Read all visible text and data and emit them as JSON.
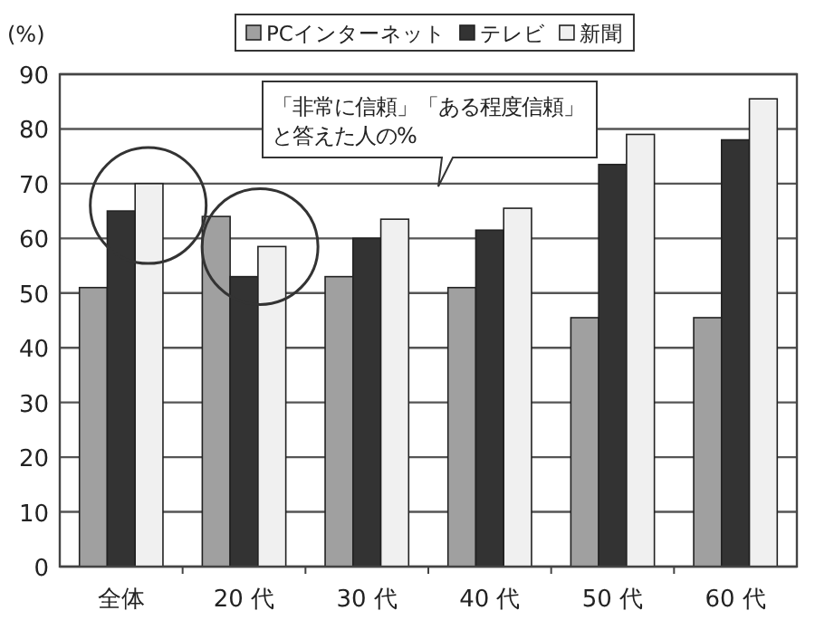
{
  "chart_data": {
    "type": "bar",
    "ylabel": "(%)",
    "categories": [
      "全体",
      "20 代",
      "30 代",
      "40 代",
      "50 代",
      "60 代"
    ],
    "series": [
      {
        "name": "PCインターネット",
        "color": "#a0a0a0",
        "values": [
          51,
          64,
          53,
          51,
          45.5,
          45.5
        ]
      },
      {
        "name": "テレビ",
        "color": "#333333",
        "values": [
          65,
          53,
          60,
          61.5,
          73.5,
          78
        ]
      },
      {
        "name": "新聞",
        "color": "#f0f0f0",
        "values": [
          70,
          58.5,
          63.5,
          65.5,
          79,
          85.5
        ]
      }
    ],
    "ylim": [
      0,
      90
    ],
    "yticks": [
      0,
      10,
      20,
      30,
      40,
      50,
      60,
      70,
      80,
      90
    ],
    "grid": "y",
    "legend": "top",
    "annotations": [
      "「非常に信頼」「ある程度信頼」",
      "と答えた人の%"
    ]
  }
}
